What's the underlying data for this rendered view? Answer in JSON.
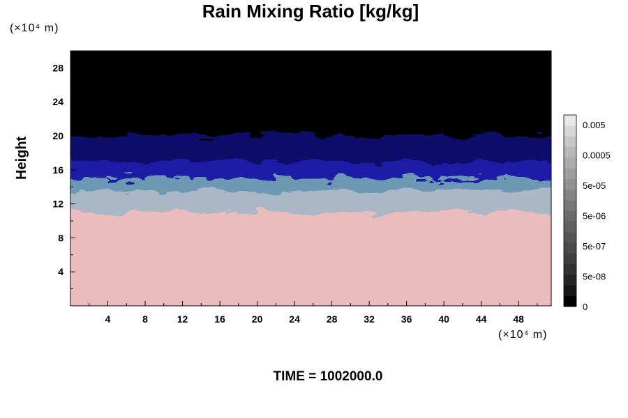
{
  "chart_data": {
    "type": "heatmap",
    "title": "Rain Mixing Ratio [kg/kg]",
    "ylabel": "Height",
    "x_unit_label": "(×10⁴ m)",
    "y_unit_label": "(×10⁴ m)",
    "xlim": [
      0,
      51.5
    ],
    "ylim": [
      0,
      30
    ],
    "x_ticks": [
      4,
      8,
      12,
      16,
      20,
      24,
      28,
      32,
      36,
      40,
      44,
      48
    ],
    "y_ticks": [
      4,
      8,
      12,
      16,
      20,
      24,
      28
    ],
    "colorbar": {
      "labels": [
        "0",
        "5e-08",
        "5e-07",
        "5e-06",
        "5e-05",
        "0.0005",
        "0.005"
      ],
      "colors": [
        "#000000",
        "#151515",
        "#262626",
        "#333333",
        "#3f3f3f",
        "#4a4a4a",
        "#555555",
        "#606060",
        "#6b6b6b",
        "#777777",
        "#848484",
        "#919191",
        "#9e9e9e",
        "#ababab",
        "#b8b8b8",
        "#c6c6c6",
        "#d6d6d6",
        "#e8e8e8"
      ]
    },
    "layers": [
      {
        "name": "pink",
        "y_top": 11,
        "color": "#ebbcbc"
      },
      {
        "name": "grey-cyan",
        "y_top": 13.5,
        "color": "#a9b7c6"
      },
      {
        "name": "cyan",
        "y_top": 15,
        "color": "#6c98b4"
      },
      {
        "name": "blue",
        "y_top": 17,
        "color": "#1c1ea6"
      },
      {
        "name": "dark-blue",
        "y_top": 20,
        "color": "#0c0f6a"
      },
      {
        "name": "black",
        "y_top": 30,
        "color": "#000000"
      }
    ]
  },
  "time_label": "TIME = 1002000.0"
}
